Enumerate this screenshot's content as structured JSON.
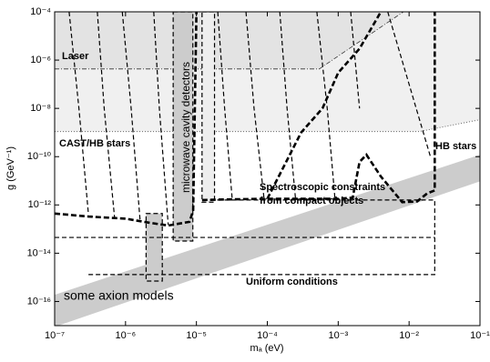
{
  "chart_data": {
    "type": "exclusion",
    "xlabel": "mₐ (eV)",
    "ylabel": "g (GeV⁻¹)",
    "log_x": true,
    "log_y": true,
    "xlim": [
      1e-07,
      0.1
    ],
    "ylim": [
      1e-17,
      0.0001
    ],
    "xticks": [
      {
        "value": 1e-07,
        "label": "10⁻⁷"
      },
      {
        "value": 1e-06,
        "label": "10⁻⁶"
      },
      {
        "value": 1e-05,
        "label": "10⁻⁵"
      },
      {
        "value": 0.0001,
        "label": "10⁻⁴"
      },
      {
        "value": 0.001,
        "label": "10⁻³"
      },
      {
        "value": 0.01,
        "label": "10⁻²"
      },
      {
        "value": 0.1,
        "label": "10⁻¹"
      }
    ],
    "yticks": [
      {
        "value": 1e-16,
        "label": "10⁻¹⁶"
      },
      {
        "value": 1e-14,
        "label": "10⁻¹⁴"
      },
      {
        "value": 1e-12,
        "label": "10⁻¹²"
      },
      {
        "value": 1e-10,
        "label": "10⁻¹⁰"
      },
      {
        "value": 1e-08,
        "label": "10⁻⁸"
      },
      {
        "value": 1e-06,
        "label": "10⁻⁶"
      },
      {
        "value": 0.0001,
        "label": "10⁻⁴"
      }
    ],
    "annotations": [
      "Laser",
      "CAST/HB stars",
      "HB stars",
      "microwave cavity detectors",
      "Spectroscopic constraints",
      "from compact objects",
      "Uniform conditions",
      "some axion models"
    ],
    "shapes": [
      {
        "style": "dotted",
        "fill": "#f0f0f0",
        "x": [
          1e-07,
          0.014,
          0.1,
          0.1,
          1e-07
        ],
        "y": [
          1.1e-09,
          1.1e-09,
          3.4e-09,
          0.0001,
          0.0001
        ]
      },
      {
        "style": "dashdot",
        "fill": "#e3e3e3",
        "x": [
          1e-07,
          0.00054,
          0.0083,
          1e-07
        ],
        "y": [
          4.3e-07,
          4.3e-07,
          0.0001,
          0.0001
        ]
      },
      {
        "style": "none",
        "fill": "#cccccc",
        "x": [
          1e-07,
          0.1,
          0.1,
          1e-07
        ],
        "y": [
          1.9e-16,
          1.2e-10,
          9.5e-12,
          8.9e-18
        ]
      },
      {
        "style": "dashed",
        "fill": "#cccccc",
        "x": [
          4.7e-06,
          8.9e-06,
          8.9e-06,
          4.7e-06
        ],
        "y": [
          0.0001,
          0.0001,
          3.2e-14,
          3.2e-14
        ]
      },
      {
        "style": "dashed",
        "fill": "#cccccc",
        "x": [
          1.95e-06,
          3.3e-06,
          3.3e-06,
          1.95e-06
        ],
        "y": [
          4.4e-13,
          4.4e-13,
          7e-16,
          7e-16
        ]
      },
      {
        "style": "dashed",
        "fill": "#eeeeee",
        "x": [
          1.2e-05,
          1.8e-05,
          1.8e-05,
          1.2e-05
        ],
        "y": [
          0.0001,
          0.0001,
          1.3e-12,
          1.3e-12
        ]
      },
      {
        "style": "dashed",
        "x": [
          1e-07,
          0.023
        ],
        "y": [
          4.5e-14,
          4.5e-14
        ]
      },
      {
        "style": "dashed",
        "x": [
          3e-07,
          0.023,
          0.023,
          1.2e-05
        ],
        "y": [
          1.3e-15,
          1.3e-15,
          1.6e-12,
          1.6e-12
        ]
      },
      {
        "style": "thick",
        "x": [
          1e-07,
          3e-07,
          1e-06,
          2e-06,
          4e-06,
          8e-06,
          9e-06,
          9.5e-06,
          1e-05
        ],
        "y": [
          4.4e-13,
          3.3e-13,
          2.7e-13,
          1.9e-13,
          1.4e-13,
          2e-13,
          6e-13,
          1e-08,
          0.0001
        ]
      },
      {
        "style": "thick",
        "x": [
          1.2e-05,
          3e-05,
          0.0001,
          0.001,
          0.0016,
          0.002,
          0.0025,
          0.004,
          0.008,
          0.013,
          0.018,
          0.023,
          0.023
        ],
        "y": [
          1.6e-12,
          1.7e-12,
          1.8e-12,
          1.8e-12,
          2e-12,
          6e-11,
          1.2e-10,
          1.5e-11,
          1.3e-12,
          1.4e-12,
          3e-12,
          4e-12,
          0.0001
        ]
      },
      {
        "style": "thick",
        "x": [
          0.0001,
          0.0003,
          0.0006,
          0.001,
          0.002,
          0.004
        ],
        "y": [
          1.8e-12,
          1e-09,
          1e-08,
          3e-07,
          3e-06,
          0.0001
        ]
      },
      {
        "style": "dashed",
        "x": [
          1.6e-07,
          2.2e-07,
          3e-07
        ],
        "y": [
          0.0001,
          1e-08,
          4e-13
        ]
      },
      {
        "style": "dashed",
        "x": [
          4e-07,
          5e-07,
          7e-07
        ],
        "y": [
          0.0001,
          1e-08,
          3e-13
        ]
      },
      {
        "style": "dashed",
        "x": [
          9e-07,
          1.2e-06,
          1.6e-06
        ],
        "y": [
          0.0001,
          1e-08,
          2.5e-13
        ]
      },
      {
        "style": "dashed",
        "x": [
          2.5e-06,
          3e-06,
          4e-06
        ],
        "y": [
          0.0001,
          1e-08,
          1.5e-13
        ]
      },
      {
        "style": "dashed",
        "x": [
          2e-05,
          2.5e-05,
          3.2e-05
        ],
        "y": [
          0.0001,
          1e-08,
          1.7e-12
        ]
      },
      {
        "style": "dashed",
        "x": [
          5e-05,
          6.5e-05,
          9e-05
        ],
        "y": [
          0.0001,
          1e-08,
          1.8e-12
        ]
      },
      {
        "style": "dashed",
        "x": [
          0.00015,
          0.00019,
          0.00025
        ],
        "y": [
          0.0001,
          1e-08,
          1.8e-12
        ]
      },
      {
        "style": "dashed",
        "x": [
          0.0005,
          0.0007,
          0.0009
        ],
        "y": [
          0.0001,
          1e-08,
          1.8e-12
        ]
      },
      {
        "style": "dashed",
        "x": [
          0.0015,
          0.002
        ],
        "y": [
          0.0001,
          1e-08
        ]
      },
      {
        "style": "dashed",
        "x": [
          0.005,
          0.01,
          0.02
        ],
        "y": [
          0.0001,
          1e-07,
          1e-10
        ]
      }
    ]
  }
}
